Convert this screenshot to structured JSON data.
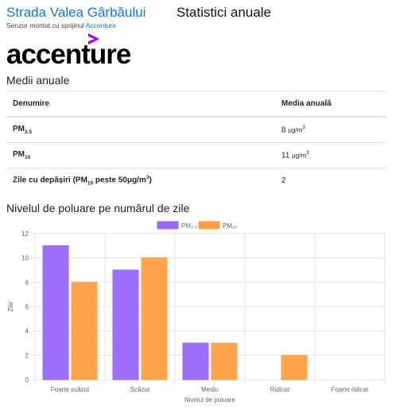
{
  "header": {
    "site_title": "Strada Valea Gârbăului",
    "page_title": "Statistici anuale",
    "sponsor_text": "Senzor montat cu sprijinul",
    "sponsor_link": "Accenture"
  },
  "logo": {
    "text": "accenture",
    "accent_color": "#a100ff"
  },
  "annual": {
    "title": "Medii anuale",
    "col_name": "Denumire",
    "col_value": "Media anuală",
    "rows": [
      {
        "name_base": "PM",
        "name_sub": "2.5",
        "name_suffix": "",
        "value": "8",
        "unit_base": "μg/m",
        "unit_sup": "3"
      },
      {
        "name_base": "PM",
        "name_sub": "10",
        "name_suffix": "",
        "value": "11",
        "unit_base": "μg/m",
        "unit_sup": "3"
      },
      {
        "name_base": "Zile cu depășiri (PM",
        "name_sub": "10",
        "name_suffix": " peste 50μg/m",
        "name_sup": "3",
        "name_end": ")",
        "value": "2"
      }
    ]
  },
  "chart_data": {
    "type": "bar",
    "title": "Nivelul de poluare pe numărul de zile",
    "categories": [
      "Foarte scăzut",
      "Scăzut",
      "Mediu",
      "Ridicat",
      "Foarte ridicat"
    ],
    "series": [
      {
        "name": "PM₂.₅",
        "values": [
          11,
          9,
          3,
          0,
          0
        ],
        "color": "#9966ff"
      },
      {
        "name": "PM₁₀",
        "values": [
          8,
          10,
          3,
          2,
          0
        ],
        "color": "#ff9f40"
      }
    ],
    "xlabel": "Nivelul de poluare",
    "ylabel": "Zile",
    "ylim": [
      0,
      12
    ],
    "yticks": [
      0,
      2,
      4,
      6,
      8,
      10,
      12
    ],
    "grid": true,
    "legend": "top"
  }
}
